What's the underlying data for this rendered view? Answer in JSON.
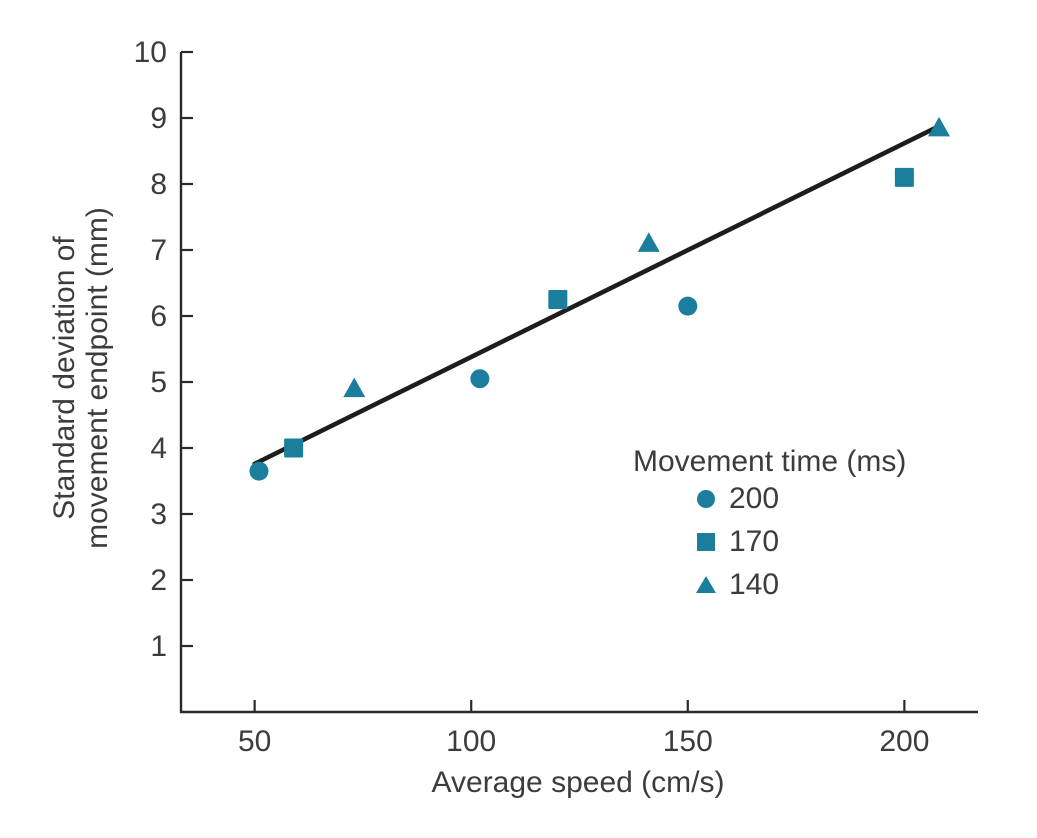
{
  "chart_data": {
    "type": "scatter",
    "title": "",
    "xlabel": "Average speed (cm/s)",
    "ylabel_lines": [
      "Standard deviation of",
      "movement endpoint (mm)"
    ],
    "x_ticks": [
      50,
      100,
      150,
      200
    ],
    "y_ticks": [
      1,
      2,
      3,
      4,
      5,
      6,
      7,
      8,
      9,
      10
    ],
    "xlim": [
      33,
      217
    ],
    "ylim": [
      0,
      10
    ],
    "grid": false,
    "legend": {
      "title": "Movement time (ms)",
      "position": "inside-right-middle",
      "items": [
        {
          "label": "200",
          "marker": "circle"
        },
        {
          "label": "170",
          "marker": "square"
        },
        {
          "label": "140",
          "marker": "triangle"
        }
      ]
    },
    "series": [
      {
        "name": "200",
        "marker": "circle",
        "points": [
          [
            51,
            3.65
          ],
          [
            102,
            5.05
          ],
          [
            150,
            6.15
          ]
        ]
      },
      {
        "name": "170",
        "marker": "square",
        "points": [
          [
            59,
            4.0
          ],
          [
            120,
            6.25
          ],
          [
            200,
            8.1
          ]
        ]
      },
      {
        "name": "140",
        "marker": "triangle",
        "points": [
          [
            73,
            4.9
          ],
          [
            141,
            7.1
          ],
          [
            208,
            8.85
          ]
        ]
      }
    ],
    "trendline": {
      "start": [
        50,
        3.76
      ],
      "end": [
        207.8,
        8.87
      ]
    },
    "colors": {
      "marker": "#1c7e9d",
      "trend": "#1d1d1b",
      "axis": "#2b2a28",
      "text": "#3d3c3b",
      "background": "#ffffff"
    }
  }
}
